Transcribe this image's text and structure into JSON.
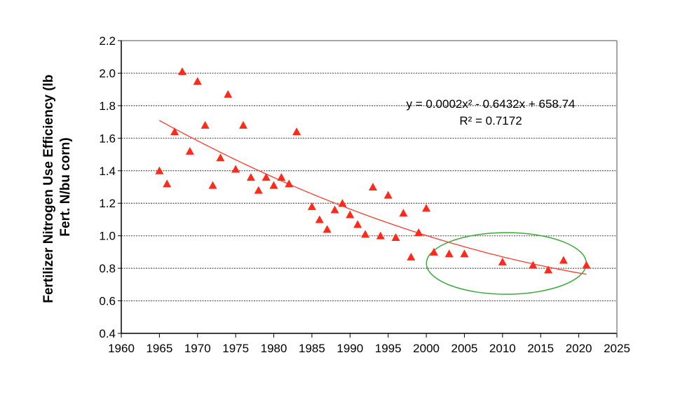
{
  "chart_data": {
    "type": "scatter",
    "title": "",
    "xlabel": "",
    "ylabel_lines": [
      "Fertilizer Nitrogen Use Efficiency (lb",
      "Fert. N/bu corn)"
    ],
    "xlim": [
      1960,
      2025
    ],
    "ylim": [
      0.4,
      2.2
    ],
    "x_ticks": [
      "1960",
      "1965",
      "1970",
      "1975",
      "1980",
      "1985",
      "1990",
      "1995",
      "2000",
      "2005",
      "2010",
      "2015",
      "2020",
      "2025"
    ],
    "y_ticks": [
      "0.4",
      "0.6",
      "0.8",
      "1.0",
      "1.2",
      "1.4",
      "1.6",
      "1.8",
      "2.0",
      "2.2"
    ],
    "grid": "horizontal dotted",
    "marker": "triangle",
    "marker_color": "#ff2a1a",
    "trendline": {
      "type": "polynomial order 2",
      "color": "#ff3b2f",
      "equation": "y = 0.0002x² - 0.6432x + 658.74",
      "r_squared": "R² = 0.7172"
    },
    "highlight_ellipse_color": "#3daa3d",
    "points": [
      [
        1965,
        1.4
      ],
      [
        1966,
        1.32
      ],
      [
        1967,
        1.64
      ],
      [
        1968,
        2.01
      ],
      [
        1969,
        1.52
      ],
      [
        1970,
        1.95
      ],
      [
        1971,
        1.68
      ],
      [
        1972,
        1.31
      ],
      [
        1973,
        1.48
      ],
      [
        1974,
        1.87
      ],
      [
        1975,
        1.41
      ],
      [
        1976,
        1.68
      ],
      [
        1977,
        1.36
      ],
      [
        1978,
        1.28
      ],
      [
        1979,
        1.36
      ],
      [
        1980,
        1.31
      ],
      [
        1981,
        1.36
      ],
      [
        1982,
        1.32
      ],
      [
        1983,
        1.64
      ],
      [
        1985,
        1.18
      ],
      [
        1986,
        1.1
      ],
      [
        1987,
        1.04
      ],
      [
        1988,
        1.16
      ],
      [
        1989,
        1.2
      ],
      [
        1990,
        1.13
      ],
      [
        1991,
        1.07
      ],
      [
        1992,
        1.01
      ],
      [
        1993,
        1.3
      ],
      [
        1994,
        1.0
      ],
      [
        1995,
        1.25
      ],
      [
        1996,
        0.99
      ],
      [
        1997,
        1.14
      ],
      [
        1998,
        0.87
      ],
      [
        1999,
        1.02
      ],
      [
        2000,
        1.17
      ],
      [
        2001,
        0.9
      ],
      [
        2003,
        0.89
      ],
      [
        2005,
        0.89
      ],
      [
        2010,
        0.84
      ],
      [
        2014,
        0.82
      ],
      [
        2016,
        0.79
      ],
      [
        2018,
        0.85
      ],
      [
        2021,
        0.82
      ]
    ]
  }
}
